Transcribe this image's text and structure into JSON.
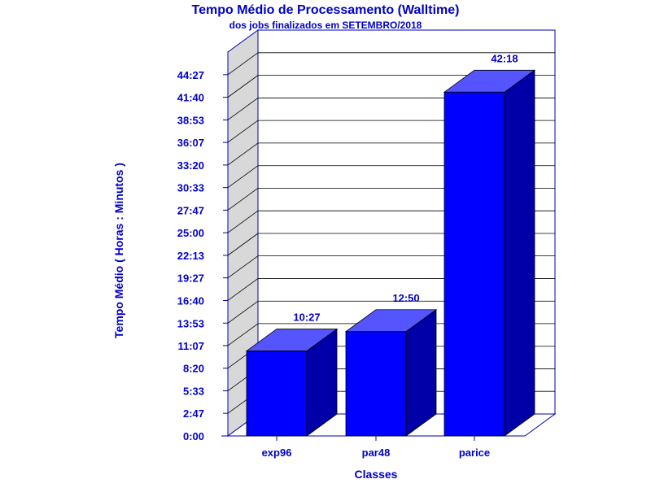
{
  "chart_data": {
    "type": "bar",
    "title": "Tempo Médio de Processamento (Walltime)",
    "subtitle": "dos jobs finalizados em SETEMBRO/2018",
    "xlabel": "Classes",
    "ylabel": "Tempo Médio ( Horas : Minutos )",
    "categories": [
      "exp96",
      "par48",
      "parice"
    ],
    "values": [
      10.45,
      12.8333,
      42.3
    ],
    "value_labels": [
      "10:27",
      "12:50",
      "42:18"
    ],
    "y_ticks": [
      {
        "value": 0,
        "label": "0:00"
      },
      {
        "value": 2.7833,
        "label": "2:47"
      },
      {
        "value": 5.55,
        "label": "5:33"
      },
      {
        "value": 8.3333,
        "label": "8:20"
      },
      {
        "value": 11.1167,
        "label": "11:07"
      },
      {
        "value": 13.8833,
        "label": "13:53"
      },
      {
        "value": 16.6667,
        "label": "16:40"
      },
      {
        "value": 19.45,
        "label": "19:27"
      },
      {
        "value": 22.2167,
        "label": "22:13"
      },
      {
        "value": 25,
        "label": "25:00"
      },
      {
        "value": 27.7833,
        "label": "27:47"
      },
      {
        "value": 30.55,
        "label": "30:33"
      },
      {
        "value": 33.3333,
        "label": "33:20"
      },
      {
        "value": 36.1167,
        "label": "36:07"
      },
      {
        "value": 38.8833,
        "label": "38:53"
      },
      {
        "value": 41.6667,
        "label": "41:40"
      },
      {
        "value": 44.45,
        "label": "44:27"
      }
    ],
    "ylim": [
      0,
      47.2333
    ],
    "grid": true,
    "colors": {
      "text": "#0000cc",
      "bar_front": "#0000ff",
      "bar_top": "#5555ff",
      "bar_side": "#0000a8",
      "axis_line": "#0000aa",
      "grid": "#000000",
      "left_wall": "#d8d8d8"
    }
  }
}
